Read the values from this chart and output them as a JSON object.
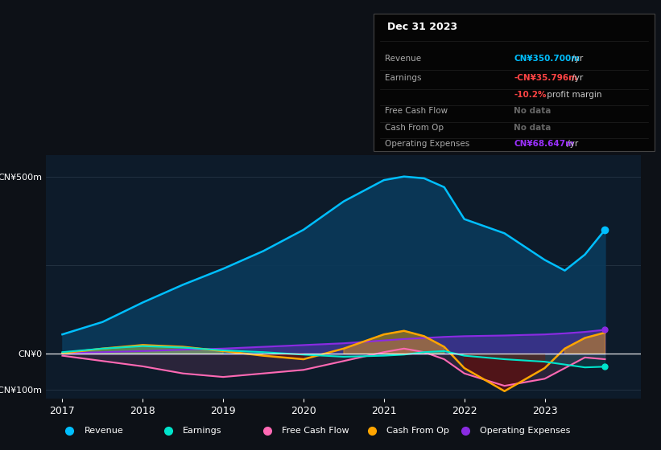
{
  "background_color": "#0d1117",
  "chart_bg": "#0d1b2a",
  "years": [
    2017,
    2017.5,
    2018,
    2018.5,
    2019,
    2019.5,
    2020,
    2020.5,
    2021,
    2021.25,
    2021.5,
    2021.75,
    2022,
    2022.5,
    2023,
    2023.25,
    2023.5,
    2023.75
  ],
  "revenue": [
    55,
    90,
    145,
    195,
    240,
    290,
    350,
    430,
    490,
    500,
    495,
    470,
    380,
    340,
    265,
    235,
    280,
    350
  ],
  "earnings": [
    5,
    15,
    22,
    18,
    10,
    5,
    -2,
    -8,
    -5,
    -2,
    5,
    8,
    -5,
    -15,
    -22,
    -30,
    -38,
    -36
  ],
  "free_cash_flow": [
    -5,
    -20,
    -35,
    -55,
    -65,
    -55,
    -45,
    -20,
    5,
    15,
    5,
    -15,
    -55,
    -90,
    -70,
    -40,
    -10,
    -15
  ],
  "cash_from_op": [
    2,
    15,
    25,
    20,
    8,
    -5,
    -15,
    15,
    55,
    65,
    50,
    20,
    -40,
    -105,
    -40,
    15,
    45,
    60
  ],
  "op_expenses": [
    2,
    5,
    8,
    12,
    15,
    20,
    25,
    30,
    38,
    42,
    45,
    48,
    50,
    52,
    55,
    58,
    62,
    68
  ],
  "ylim": [
    -125,
    560
  ],
  "xlim": [
    2016.8,
    2024.2
  ],
  "revenue_color": "#00bfff",
  "revenue_fill": "#0a3a5a",
  "earnings_color": "#00e5cc",
  "fcf_color": "#ff69b4",
  "cfo_color": "#ffa500",
  "opex_color": "#8a2be2",
  "grid_color": "#2a3a4a",
  "zero_line_color": "#ffffff",
  "text_color": "#ffffff",
  "label_color": "#aaaaaa",
  "legend": [
    {
      "label": "Revenue",
      "color": "#00bfff"
    },
    {
      "label": "Earnings",
      "color": "#00e5cc"
    },
    {
      "label": "Free Cash Flow",
      "color": "#ff69b4"
    },
    {
      "label": "Cash From Op",
      "color": "#ffa500"
    },
    {
      "label": "Operating Expenses",
      "color": "#8a2be2"
    }
  ]
}
